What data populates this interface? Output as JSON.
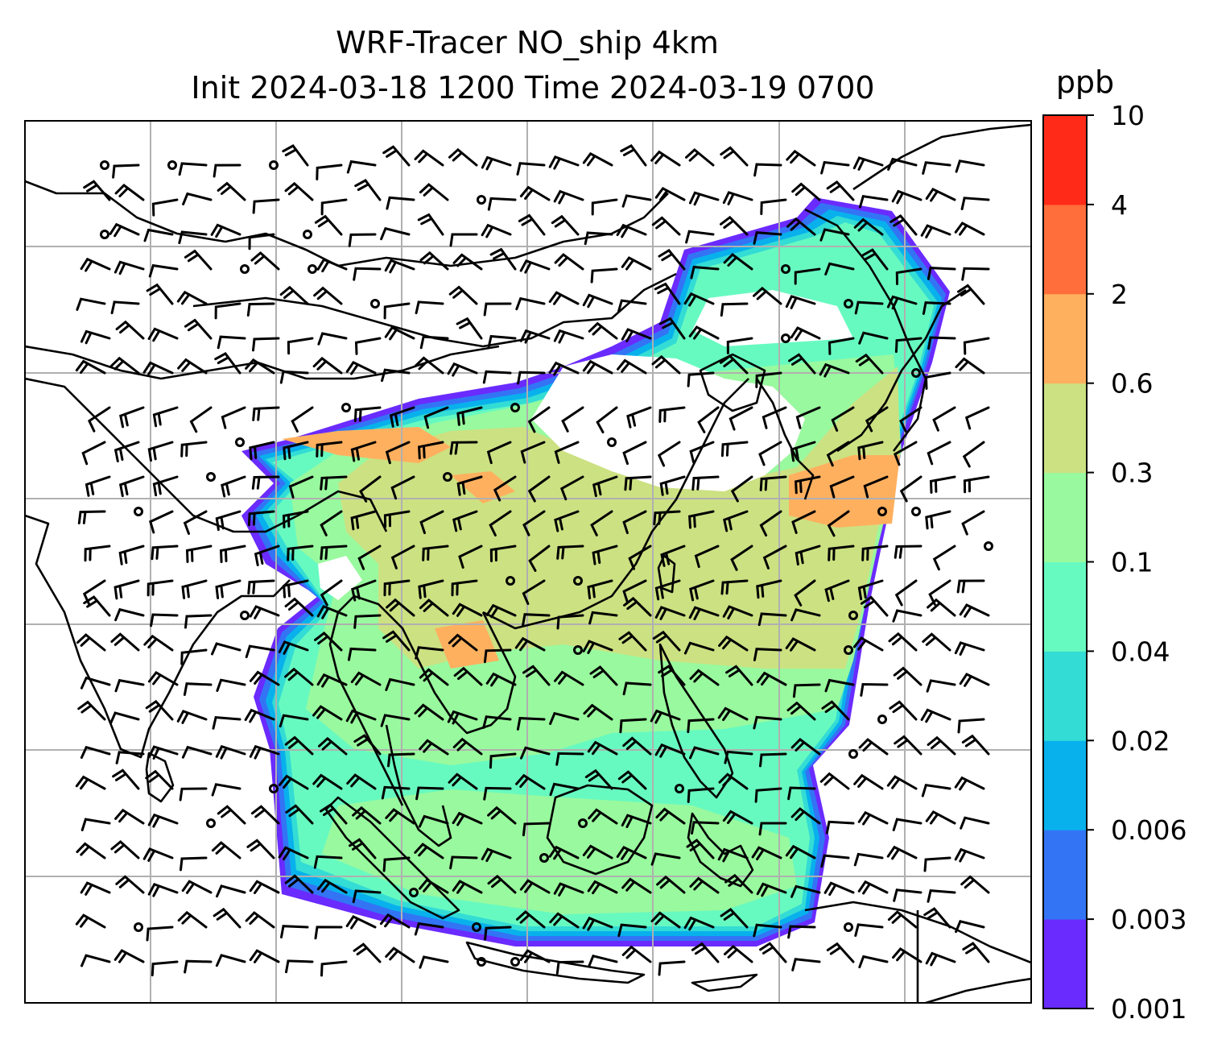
{
  "title": {
    "line1": "WRF-Tracer NO_ship 4km",
    "line2": "Init 2024-03-18 1200 Time 2024-03-19 0700"
  },
  "colorbar": {
    "unit": "ppb",
    "ticks": [
      "0.001",
      "0.003",
      "0.006",
      "0.02",
      "0.04",
      "0.1",
      "0.3",
      "0.6",
      "2",
      "4",
      "10"
    ],
    "colors": [
      "#6a2bff",
      "#3374f5",
      "#08b1ec",
      "#33dcd4",
      "#67fac0",
      "#99f99e",
      "#cce182",
      "#ffb05f",
      "#ff6e3b",
      "#ff2a17"
    ]
  },
  "map": {
    "grid": "on",
    "overlay": "wind barbs",
    "border_color": "#000000"
  }
}
